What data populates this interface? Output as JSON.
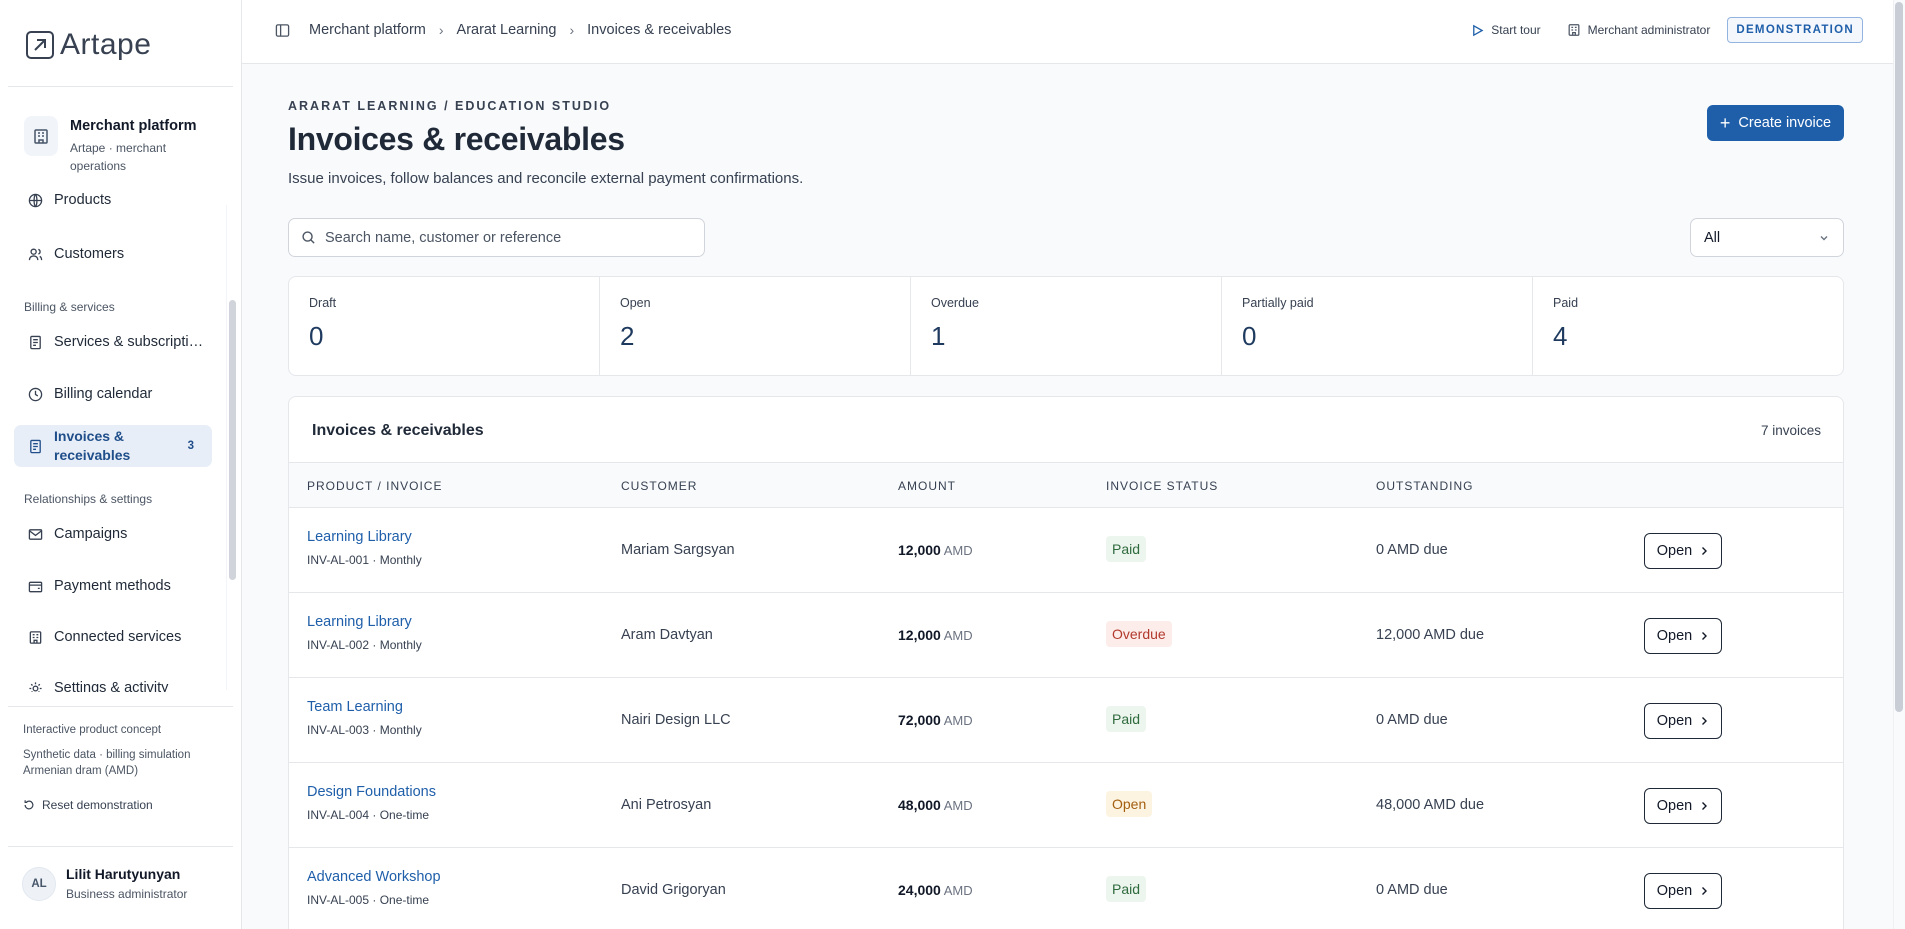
{
  "brand": {
    "name": "Artape"
  },
  "org": {
    "title": "Merchant platform",
    "subtitle": "Artape · merchant operations"
  },
  "sidebar": {
    "items": [
      {
        "label": "Products",
        "icon": "globe-icon"
      },
      {
        "label": "Customers",
        "icon": "users-icon"
      },
      {
        "label": "Services & subscripti…",
        "icon": "document-icon"
      },
      {
        "label": "Billing calendar",
        "icon": "clock-icon"
      },
      {
        "label": "Invoices & receivables",
        "icon": "invoice-icon",
        "badge": "3",
        "active": true
      },
      {
        "label": "Campaigns",
        "icon": "mail-icon"
      },
      {
        "label": "Payment methods",
        "icon": "wallet-icon"
      },
      {
        "label": "Connected services",
        "icon": "building-icon"
      },
      {
        "label": "Settings & activity",
        "icon": "gear-icon"
      }
    ],
    "sections": {
      "billing": "Billing & services",
      "relationships": "Relationships & settings"
    },
    "concept": {
      "line1": "Interactive product concept",
      "line2": "Synthetic data · billing simulation",
      "line3": "Armenian dram (AMD)"
    },
    "reset_label": "Reset demonstration",
    "user": {
      "initials": "AL",
      "name": "Lilit Harutyunyan",
      "role": "Business administrator"
    }
  },
  "topbar": {
    "breadcrumb": [
      "Merchant platform",
      "Ararat Learning",
      "Invoices & receivables"
    ],
    "start_tour": "Start tour",
    "role": "Merchant administrator",
    "badge": "DEMONSTRATION"
  },
  "page": {
    "eyebrow": "ARARAT LEARNING / EDUCATION STUDIO",
    "title": "Invoices & receivables",
    "subtitle": "Issue invoices, follow balances and reconcile external payment confirmations.",
    "create_label": "Create invoice",
    "search_placeholder": "Search name, customer or reference",
    "filter_value": "All"
  },
  "stats": [
    {
      "label": "Draft",
      "value": "0"
    },
    {
      "label": "Open",
      "value": "2"
    },
    {
      "label": "Overdue",
      "value": "1"
    },
    {
      "label": "Partially paid",
      "value": "0"
    },
    {
      "label": "Paid",
      "value": "4"
    }
  ],
  "table": {
    "title": "Invoices & receivables",
    "count": "7 invoices",
    "headers": [
      "PRODUCT / INVOICE",
      "CUSTOMER",
      "AMOUNT",
      "INVOICE STATUS",
      "OUTSTANDING"
    ],
    "open_label": "Open",
    "rows": [
      {
        "product": "Learning Library",
        "meta": "INV-AL-001 · Monthly",
        "customer": "Mariam Sargsyan",
        "amount": "12,000",
        "currency": "AMD",
        "status": "Paid",
        "status_kind": "paid",
        "outstanding": "0 AMD due"
      },
      {
        "product": "Learning Library",
        "meta": "INV-AL-002 · Monthly",
        "customer": "Aram Davtyan",
        "amount": "12,000",
        "currency": "AMD",
        "status": "Overdue",
        "status_kind": "overdue",
        "outstanding": "12,000 AMD due"
      },
      {
        "product": "Team Learning",
        "meta": "INV-AL-003 · Monthly",
        "customer": "Nairi Design LLC",
        "amount": "72,000",
        "currency": "AMD",
        "status": "Paid",
        "status_kind": "paid",
        "outstanding": "0 AMD due"
      },
      {
        "product": "Design Foundations",
        "meta": "INV-AL-004 · One-time",
        "customer": "Ani Petrosyan",
        "amount": "48,000",
        "currency": "AMD",
        "status": "Open",
        "status_kind": "open",
        "outstanding": "48,000 AMD due"
      },
      {
        "product": "Advanced Workshop",
        "meta": "INV-AL-005 · One-time",
        "customer": "David Grigoryan",
        "amount": "24,000",
        "currency": "AMD",
        "status": "Paid",
        "status_kind": "paid",
        "outstanding": "0 AMD due"
      }
    ]
  }
}
